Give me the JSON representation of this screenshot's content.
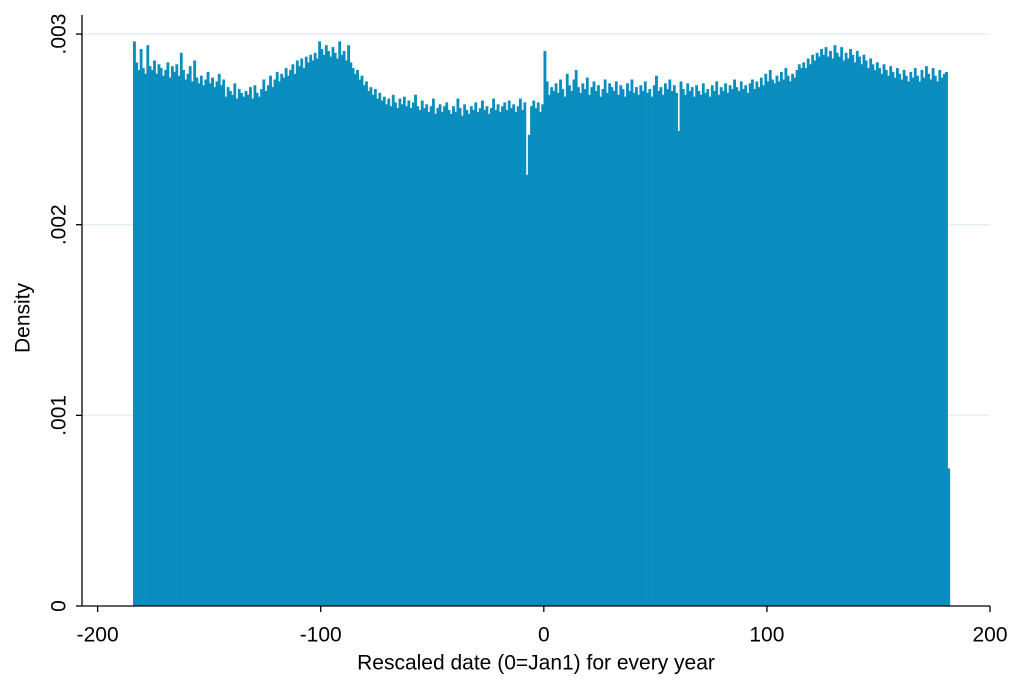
{
  "chart_data": {
    "type": "histogram",
    "x_label": "Rescaled date (0=Jan1) for every year",
    "y_label": "Density",
    "color": "#0a8dbf",
    "grid": true,
    "xlim": [
      -207,
      200
    ],
    "ylim": [
      0,
      0.0031
    ],
    "xticks": [
      -200,
      -100,
      0,
      100,
      200
    ],
    "yticks": [
      0,
      {
        "value": 0.001,
        "label": ".001"
      },
      {
        "value": 0.002,
        "label": ".002"
      },
      {
        "value": 0.003,
        "label": ".003"
      }
    ],
    "bins": [
      -184,
      -183,
      -182,
      -181,
      -180,
      -179,
      -178,
      -177,
      -176,
      -175,
      -174,
      -173,
      -172,
      -171,
      -170,
      -169,
      -168,
      -167,
      -166,
      -165,
      -164,
      -163,
      -162,
      -161,
      -160,
      -159,
      -158,
      -157,
      -156,
      -155,
      -154,
      -153,
      -152,
      -151,
      -150,
      -149,
      -148,
      -147,
      -146,
      -145,
      -144,
      -143,
      -142,
      -141,
      -140,
      -139,
      -138,
      -137,
      -136,
      -135,
      -134,
      -133,
      -132,
      -131,
      -130,
      -129,
      -128,
      -127,
      -126,
      -125,
      -124,
      -123,
      -122,
      -121,
      -120,
      -119,
      -118,
      -117,
      -116,
      -115,
      -114,
      -113,
      -112,
      -111,
      -110,
      -109,
      -108,
      -107,
      -106,
      -105,
      -104,
      -103,
      -102,
      -101,
      -100,
      -99,
      -98,
      -97,
      -96,
      -95,
      -94,
      -93,
      -92,
      -91,
      -90,
      -89,
      -88,
      -87,
      -86,
      -85,
      -84,
      -83,
      -82,
      -81,
      -80,
      -79,
      -78,
      -77,
      -76,
      -75,
      -74,
      -73,
      -72,
      -71,
      -70,
      -69,
      -68,
      -67,
      -66,
      -65,
      -64,
      -63,
      -62,
      -61,
      -60,
      -59,
      -58,
      -57,
      -56,
      -55,
      -54,
      -53,
      -52,
      -51,
      -50,
      -49,
      -48,
      -47,
      -46,
      -45,
      -44,
      -43,
      -42,
      -41,
      -40,
      -39,
      -38,
      -37,
      -36,
      -35,
      -34,
      -33,
      -32,
      -31,
      -30,
      -29,
      -28,
      -27,
      -26,
      -25,
      -24,
      -23,
      -22,
      -21,
      -20,
      -19,
      -18,
      -17,
      -16,
      -15,
      -14,
      -13,
      -12,
      -11,
      -10,
      -9,
      -8,
      -7,
      -6,
      -5,
      -4,
      -3,
      -2,
      -1,
      0,
      1,
      2,
      3,
      4,
      5,
      6,
      7,
      8,
      9,
      10,
      11,
      12,
      13,
      14,
      15,
      16,
      17,
      18,
      19,
      20,
      21,
      22,
      23,
      24,
      25,
      26,
      27,
      28,
      29,
      30,
      31,
      32,
      33,
      34,
      35,
      36,
      37,
      38,
      39,
      40,
      41,
      42,
      43,
      44,
      45,
      46,
      47,
      48,
      49,
      50,
      51,
      52,
      53,
      54,
      55,
      56,
      57,
      58,
      59,
      60,
      61,
      62,
      63,
      64,
      65,
      66,
      67,
      68,
      69,
      70,
      71,
      72,
      73,
      74,
      75,
      76,
      77,
      78,
      79,
      80,
      81,
      82,
      83,
      84,
      85,
      86,
      87,
      88,
      89,
      90,
      91,
      92,
      93,
      94,
      95,
      96,
      97,
      98,
      99,
      100,
      101,
      102,
      103,
      104,
      105,
      106,
      107,
      108,
      109,
      110,
      111,
      112,
      113,
      114,
      115,
      116,
      117,
      118,
      119,
      120,
      121,
      122,
      123,
      124,
      125,
      126,
      127,
      128,
      129,
      130,
      131,
      132,
      133,
      134,
      135,
      136,
      137,
      138,
      139,
      140,
      141,
      142,
      143,
      144,
      145,
      146,
      147,
      148,
      149,
      150,
      151,
      152,
      153,
      154,
      155,
      156,
      157,
      158,
      159,
      160,
      161,
      162,
      163,
      164,
      165,
      166,
      167,
      168,
      169,
      170,
      171,
      172,
      173,
      174,
      175,
      176,
      177,
      178,
      179,
      180,
      181,
      182
    ],
    "values": [
      0.00296,
      0.00285,
      0.00281,
      0.00292,
      0.00282,
      0.00279,
      0.00294,
      0.00283,
      0.00281,
      0.00286,
      0.00279,
      0.00284,
      0.00282,
      0.00278,
      0.00281,
      0.00285,
      0.00277,
      0.00283,
      0.0028,
      0.00284,
      0.00278,
      0.0029,
      0.00281,
      0.00276,
      0.00279,
      0.00283,
      0.00275,
      0.00286,
      0.00277,
      0.00274,
      0.00278,
      0.00273,
      0.00276,
      0.0028,
      0.00274,
      0.00277,
      0.00272,
      0.00275,
      0.00279,
      0.00273,
      0.00276,
      0.00267,
      0.00272,
      0.0027,
      0.00268,
      0.00274,
      0.00266,
      0.00271,
      0.00269,
      0.00267,
      0.0027,
      0.00268,
      0.00272,
      0.00266,
      0.00273,
      0.00269,
      0.00267,
      0.00271,
      0.00276,
      0.0027,
      0.00273,
      0.00278,
      0.00272,
      0.00276,
      0.0028,
      0.00275,
      0.00279,
      0.00277,
      0.00282,
      0.00278,
      0.00281,
      0.00284,
      0.00279,
      0.00286,
      0.00283,
      0.00287,
      0.00282,
      0.00288,
      0.00285,
      0.00289,
      0.00286,
      0.0029,
      0.00287,
      0.00296,
      0.00292,
      0.00289,
      0.00294,
      0.00291,
      0.00288,
      0.00293,
      0.0029,
      0.00287,
      0.00296,
      0.00289,
      0.00291,
      0.00286,
      0.00294,
      0.00285,
      0.00282,
      0.00279,
      0.00281,
      0.00276,
      0.00278,
      0.00273,
      0.00275,
      0.0027,
      0.00272,
      0.00268,
      0.00271,
      0.00266,
      0.00269,
      0.00265,
      0.00267,
      0.00263,
      0.00266,
      0.00262,
      0.00268,
      0.00264,
      0.00261,
      0.00266,
      0.00263,
      0.00267,
      0.00262,
      0.00265,
      0.00261,
      0.00264,
      0.00268,
      0.00262,
      0.0026,
      0.00265,
      0.00261,
      0.00263,
      0.00259,
      0.00262,
      0.00266,
      0.00258,
      0.00261,
      0.00263,
      0.00259,
      0.00262,
      0.00264,
      0.0026,
      0.00258,
      0.00262,
      0.00259,
      0.00266,
      0.00261,
      0.00257,
      0.00263,
      0.0026,
      0.00258,
      0.00262,
      0.0026,
      0.00264,
      0.00259,
      0.00261,
      0.00265,
      0.0026,
      0.00262,
      0.00258,
      0.00261,
      0.00266,
      0.0026,
      0.00263,
      0.00259,
      0.00262,
      0.00264,
      0.0026,
      0.00265,
      0.00261,
      0.00263,
      0.00259,
      0.00262,
      0.00266,
      0.0026,
      0.00264,
      0.00226,
      0.00247,
      0.00262,
      0.00265,
      0.00261,
      0.00264,
      0.00259,
      0.00263,
      0.00291,
      0.00275,
      0.00268,
      0.00272,
      0.0027,
      0.00274,
      0.00269,
      0.00276,
      0.00271,
      0.00267,
      0.00279,
      0.00273,
      0.0027,
      0.00276,
      0.00281,
      0.00272,
      0.00269,
      0.00274,
      0.00271,
      0.00277,
      0.00268,
      0.00272,
      0.00275,
      0.0027,
      0.00273,
      0.00267,
      0.00271,
      0.00276,
      0.00269,
      0.00274,
      0.00272,
      0.0027,
      0.00275,
      0.00268,
      0.00273,
      0.00271,
      0.00267,
      0.00274,
      0.0027,
      0.00276,
      0.00269,
      0.00272,
      0.00268,
      0.00273,
      0.0027,
      0.00275,
      0.00269,
      0.00271,
      0.00267,
      0.00273,
      0.00278,
      0.0027,
      0.00272,
      0.00268,
      0.00274,
      0.00271,
      0.00276,
      0.0027,
      0.00273,
      0.00269,
      0.00249,
      0.00275,
      0.00271,
      0.00268,
      0.00274,
      0.0027,
      0.00272,
      0.00267,
      0.00273,
      0.0027,
      0.00268,
      0.00274,
      0.00269,
      0.00271,
      0.00267,
      0.00273,
      0.0027,
      0.00275,
      0.00268,
      0.00272,
      0.0027,
      0.00274,
      0.00269,
      0.00273,
      0.00271,
      0.00276,
      0.00272,
      0.0027,
      0.00275,
      0.00271,
      0.00273,
      0.00269,
      0.00274,
      0.00276,
      0.00271,
      0.00275,
      0.00272,
      0.00277,
      0.00273,
      0.00279,
      0.00275,
      0.00281,
      0.00276,
      0.00274,
      0.00278,
      0.00275,
      0.0028,
      0.00276,
      0.00282,
      0.00278,
      0.00275,
      0.00279,
      0.00277,
      0.00281,
      0.00284,
      0.00282,
      0.00285,
      0.00282,
      0.00287,
      0.00284,
      0.00289,
      0.00286,
      0.0029,
      0.00288,
      0.00292,
      0.00289,
      0.00293,
      0.00288,
      0.00291,
      0.00287,
      0.00294,
      0.0029,
      0.00288,
      0.00293,
      0.00286,
      0.0029,
      0.00287,
      0.00292,
      0.00289,
      0.00285,
      0.00291,
      0.00288,
      0.00284,
      0.00289,
      0.00286,
      0.00282,
      0.00287,
      0.00284,
      0.00281,
      0.00285,
      0.00282,
      0.00279,
      0.00284,
      0.00281,
      0.00278,
      0.00283,
      0.0028,
      0.00277,
      0.00282,
      0.00279,
      0.00276,
      0.00281,
      0.00278,
      0.00275,
      0.0028,
      0.00277,
      0.00282,
      0.00278,
      0.00275,
      0.00281,
      0.00277,
      0.00283,
      0.00279,
      0.00276,
      0.00282,
      0.00278,
      0.00275,
      0.00281,
      0.00277,
      0.00279,
      0.0028,
      0.00072
    ]
  }
}
